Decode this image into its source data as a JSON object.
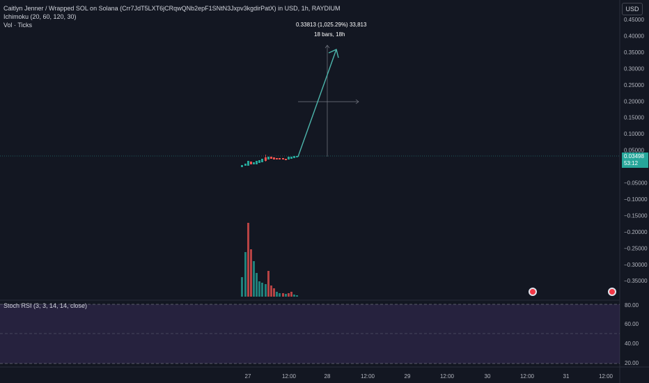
{
  "legend": {
    "title": "Caitlyn Jenner / Wrapped SOL on Solana (Crr7JdT5LXT6jCRqwQNb2epF1SNtN3Jxpv3kgdirPatX) in USD, 1h, RAYDIUM",
    "indicator1": "Ichimoku (20, 60, 120, 30)",
    "indicator2": "Vol · Ticks"
  },
  "currency": "USD",
  "price_axis": [
    "0.45000",
    "0.40000",
    "0.35000",
    "0.30000",
    "0.25000",
    "0.20000",
    "0.15000",
    "0.10000",
    "0.05000",
    "0.00000",
    "−0.05000",
    "−0.10000",
    "−0.15000",
    "−0.20000",
    "−0.25000",
    "−0.30000",
    "−0.35000"
  ],
  "current_price": {
    "value": "0.03498",
    "countdown": "53:12"
  },
  "measure": {
    "line1": "0.33813 (1,025.29%) 33,813",
    "line2": "18 bars, 18h"
  },
  "rsi": {
    "label": "Stoch RSI (3, 3, 14, 14, close)",
    "axis": [
      "80.00",
      "60.00",
      "40.00",
      "20.00"
    ]
  },
  "time_axis": [
    "27",
    "12:00",
    "28",
    "12:00",
    "29",
    "12:00",
    "30",
    "12:00",
    "31",
    "12:00"
  ],
  "colors": {
    "up": "#26a69a",
    "down": "#ef5350",
    "rsi_band": "#7e57c2",
    "measure": "#4db6ac"
  },
  "icons": [
    "event-flag-icon",
    "event-flag-icon"
  ]
}
